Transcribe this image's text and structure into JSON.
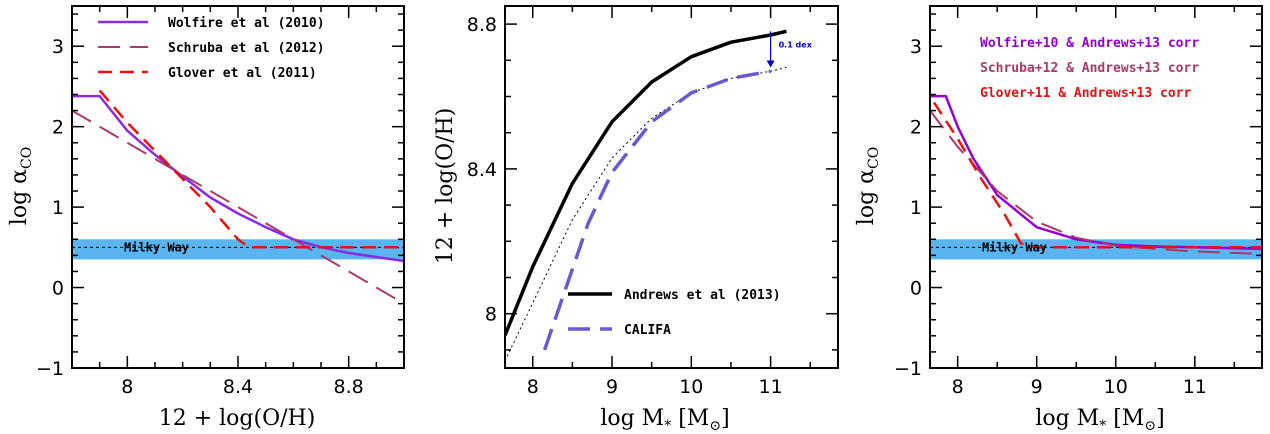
{
  "chart_data": [
    {
      "type": "line",
      "xlabel": "12 + log(O/H)",
      "ylabel": "log αCO",
      "xlim": [
        7.8,
        9.0
      ],
      "ylim": [
        -1,
        3.5
      ],
      "xticks": [
        8,
        8.4,
        8.8
      ],
      "xtick_labels": [
        "8",
        "8.4",
        "8.8"
      ],
      "yticks": [
        -1,
        0,
        1,
        2,
        3
      ],
      "ytick_labels": [
        "−1",
        "0",
        "1",
        "2",
        "3"
      ],
      "band": {
        "y0": 0.35,
        "y1": 0.6,
        "color": "#5ab4f0",
        "label": "Milky Way",
        "line_y": 0.5
      },
      "legend_position": "top-left",
      "series": [
        {
          "name": "Wolfire et al (2010)",
          "color": "#8a2be2",
          "dash": "solid",
          "width": 2.5,
          "x": [
            7.8,
            7.9,
            8.0,
            8.1,
            8.2,
            8.3,
            8.4,
            8.5,
            8.6,
            8.7,
            8.8,
            8.9,
            9.0
          ],
          "y": [
            2.38,
            2.38,
            1.95,
            1.65,
            1.38,
            1.12,
            0.92,
            0.75,
            0.6,
            0.5,
            0.43,
            0.38,
            0.33
          ]
        },
        {
          "name": "Schruba et al (2012)",
          "color": "#a83a6a",
          "dash": "long",
          "width": 2,
          "x": [
            7.8,
            9.0
          ],
          "y": [
            2.2,
            -0.2
          ]
        },
        {
          "name": "Glover et al (2011)",
          "color": "#e81010",
          "dash": "medium",
          "width": 2.5,
          "x": [
            7.9,
            8.0,
            8.1,
            8.2,
            8.3,
            8.4,
            8.44,
            8.6,
            8.8,
            9.0
          ],
          "y": [
            2.45,
            2.05,
            1.7,
            1.35,
            1.0,
            0.6,
            0.5,
            0.5,
            0.5,
            0.5
          ]
        }
      ]
    },
    {
      "type": "line",
      "xlabel": "log M* [M⊙]",
      "ylabel": "12 + log(O/H)",
      "xlim": [
        7.65,
        11.85
      ],
      "ylim": [
        7.85,
        8.85
      ],
      "xticks": [
        8,
        9,
        10,
        11
      ],
      "xtick_labels": [
        "8",
        "9",
        "10",
        "11"
      ],
      "yticks": [
        8,
        8.4,
        8.8
      ],
      "ytick_labels": [
        "8",
        "8.4",
        "8.8"
      ],
      "legend_position": "bottom-center",
      "annotation": {
        "text": "0.1 dex",
        "x": 11.0,
        "y_top": 8.78,
        "y_bottom": 8.68
      },
      "series": [
        {
          "name": "Andrews et al (2013)",
          "color": "#000000",
          "dash": "solid",
          "width": 3.5,
          "x": [
            7.65,
            8.0,
            8.5,
            9.0,
            9.5,
            10.0,
            10.5,
            11.0,
            11.2
          ],
          "y": [
            7.94,
            8.13,
            8.36,
            8.53,
            8.64,
            8.71,
            8.75,
            8.77,
            8.78
          ]
        },
        {
          "name": "",
          "color": "#000000",
          "dash": "dotted",
          "width": 1,
          "x": [
            7.65,
            8.0,
            8.5,
            9.0,
            9.5,
            10.0,
            10.5,
            11.0,
            11.2
          ],
          "y": [
            7.87,
            8.03,
            8.26,
            8.43,
            8.54,
            8.61,
            8.65,
            8.67,
            8.68
          ]
        },
        {
          "name": "CALIFA",
          "color": "#6a5acd",
          "dash": "long",
          "width": 3.5,
          "x": [
            8.15,
            8.4,
            8.7,
            9.0,
            9.5,
            10.0,
            10.5,
            11.0
          ],
          "y": [
            7.9,
            8.06,
            8.25,
            8.39,
            8.53,
            8.61,
            8.65,
            8.67
          ]
        }
      ]
    },
    {
      "type": "line",
      "xlabel": "log M* [M⊙]",
      "ylabel": "log αCO",
      "xlim": [
        7.65,
        11.85
      ],
      "ylim": [
        -1,
        3.5
      ],
      "xticks": [
        8,
        9,
        10,
        11
      ],
      "xtick_labels": [
        "8",
        "9",
        "10",
        "11"
      ],
      "yticks": [
        -1,
        0,
        1,
        2,
        3
      ],
      "ytick_labels": [
        "−1",
        "0",
        "1",
        "2",
        "3"
      ],
      "band": {
        "y0": 0.35,
        "y1": 0.6,
        "color": "#5ab4f0",
        "label": "Milky Way",
        "line_y": 0.5
      },
      "legend_position": "top-right",
      "series": [
        {
          "name": "Wolfire+10 & Andrews+13 corr",
          "color": "#9400d3",
          "dash": "solid",
          "width": 2.5,
          "x": [
            7.65,
            7.85,
            8.0,
            8.2,
            8.5,
            9.0,
            9.5,
            10.0,
            10.5,
            11.0,
            11.85
          ],
          "y": [
            2.38,
            2.38,
            2.0,
            1.6,
            1.15,
            0.75,
            0.6,
            0.53,
            0.51,
            0.5,
            0.48
          ]
        },
        {
          "name": "Schruba+12 & Andrews+13 corr",
          "color": "#a83a6a",
          "dash": "long",
          "width": 2,
          "x": [
            7.65,
            8.0,
            8.5,
            9.0,
            9.5,
            10.0,
            10.5,
            11.0,
            11.5,
            11.85
          ],
          "y": [
            2.2,
            1.75,
            1.2,
            0.82,
            0.62,
            0.52,
            0.48,
            0.45,
            0.43,
            0.42
          ]
        },
        {
          "name": "Glover+11 & Andrews+13 corr",
          "color": "#e81010",
          "dash": "medium",
          "width": 2.5,
          "x": [
            7.7,
            8.0,
            8.3,
            8.6,
            8.8,
            9.0,
            9.5,
            10.0,
            11.0,
            11.85
          ],
          "y": [
            2.3,
            1.85,
            1.35,
            0.9,
            0.55,
            0.5,
            0.5,
            0.5,
            0.5,
            0.5
          ]
        }
      ]
    }
  ]
}
